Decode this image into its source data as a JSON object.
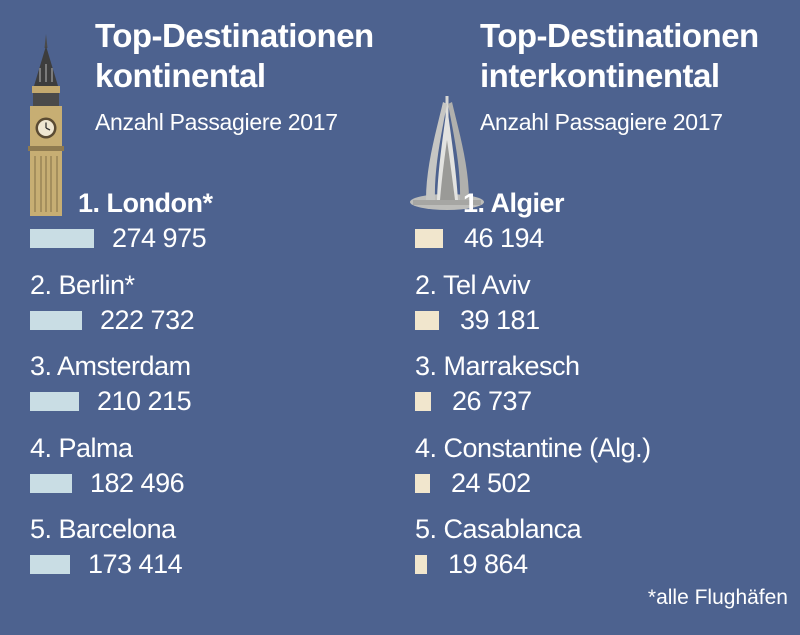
{
  "colors": {
    "background": "#4d628f",
    "bar_continental": "#c9dde4",
    "bar_intercontinental": "#f1e6cd"
  },
  "icons": {
    "left": "big-ben-icon",
    "right": "martyrs-memorial-icon"
  },
  "footnote": "*alle Flughäfen",
  "chart_data": [
    {
      "type": "bar",
      "orientation": "horizontal",
      "title_lines": [
        "Top-Destinationen",
        "kontinental"
      ],
      "subtitle": "Anzahl Passagiere 2017",
      "categories": [
        "1. London*",
        "2. Berlin*",
        "3. Amsterdam",
        "4. Palma",
        "5. Barcelona"
      ],
      "values": [
        274975,
        222732,
        210215,
        182496,
        173414
      ],
      "value_labels": [
        "274 975",
        "222 732",
        "210 215",
        "182 496",
        "173 414"
      ],
      "xlim": [
        0,
        274975
      ],
      "grid": false
    },
    {
      "type": "bar",
      "orientation": "horizontal",
      "title_lines": [
        "Top-Destinationen",
        "interkontinental"
      ],
      "subtitle": "Anzahl Passagiere 2017",
      "categories": [
        "1. Algier",
        "2. Tel Aviv",
        "3. Marrakesch",
        "4. Constantine (Alg.)",
        "5. Casablanca"
      ],
      "values": [
        46194,
        39181,
        26737,
        24502,
        19864
      ],
      "value_labels": [
        "46 194",
        "39 181",
        "26 737",
        "24 502",
        "19 864"
      ],
      "xlim": [
        0,
        46194
      ],
      "grid": false
    }
  ]
}
